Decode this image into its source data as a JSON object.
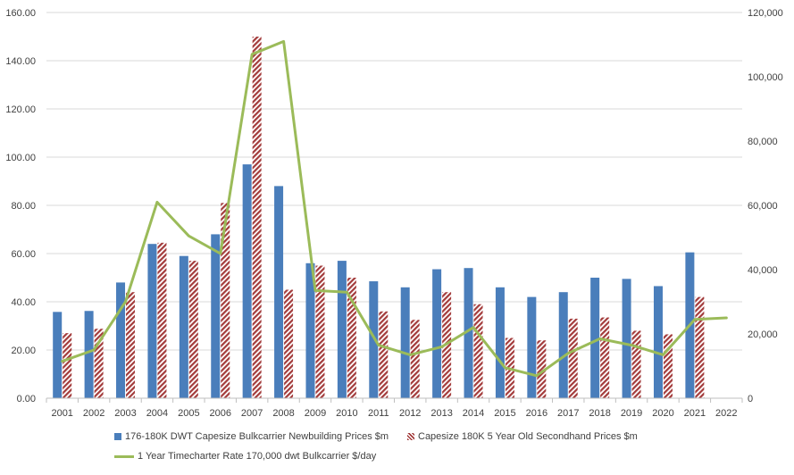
{
  "chart_data": {
    "type": "bar",
    "categories": [
      "2001",
      "2002",
      "2003",
      "2004",
      "2005",
      "2006",
      "2007",
      "2008",
      "2009",
      "2010",
      "2011",
      "2012",
      "2013",
      "2014",
      "2015",
      "2016",
      "2017",
      "2018",
      "2019",
      "2020",
      "2021",
      "2022"
    ],
    "series": [
      {
        "name": "176-180K DWT Capesize Bulkcarrier Newbuilding Prices $m",
        "type": "bar",
        "axis": "left",
        "color": "#4a7ebb",
        "values": [
          35.8,
          36.2,
          48.0,
          64.0,
          59.0,
          68.0,
          97.0,
          88.0,
          56.0,
          57.0,
          48.5,
          46.0,
          53.5,
          54.0,
          46.0,
          42.0,
          44.0,
          50.0,
          49.5,
          46.5,
          60.5,
          null
        ]
      },
      {
        "name": "Capesize 180K 5 Year Old Secondhand Prices $m",
        "type": "bar",
        "axis": "left",
        "color": "#a33b3b",
        "pattern": "diagonal-hatch",
        "values": [
          27.0,
          28.8,
          44.0,
          64.5,
          57.0,
          81.0,
          150.0,
          45.0,
          55.0,
          50.0,
          36.0,
          32.5,
          44.0,
          39.0,
          25.0,
          24.0,
          33.0,
          33.5,
          28.0,
          26.5,
          42.0,
          null
        ]
      },
      {
        "name": "1 Year Timecharter Rate 170,000 dwt Bulkcarrier $/day",
        "type": "line",
        "axis": "right",
        "color": "#9bbb59",
        "values": [
          11500,
          15000,
          30000,
          61000,
          50500,
          45000,
          107000,
          111000,
          33500,
          33000,
          16500,
          13500,
          16000,
          22000,
          9500,
          7000,
          14000,
          18500,
          16500,
          13500,
          24500,
          25000
        ]
      }
    ],
    "y_left": {
      "ylim": [
        0,
        160
      ],
      "ticks": [
        "0.00",
        "20.00",
        "40.00",
        "60.00",
        "80.00",
        "100.00",
        "120.00",
        "140.00",
        "160.00"
      ]
    },
    "y_right": {
      "ylim": [
        0,
        120000
      ],
      "ticks": [
        "0",
        "20,000",
        "40,000",
        "60,000",
        "80,000",
        "100,000",
        "120,000"
      ]
    },
    "grid": true,
    "legend_position": "bottom",
    "title": "",
    "xlabel": "",
    "ylabel": ""
  }
}
